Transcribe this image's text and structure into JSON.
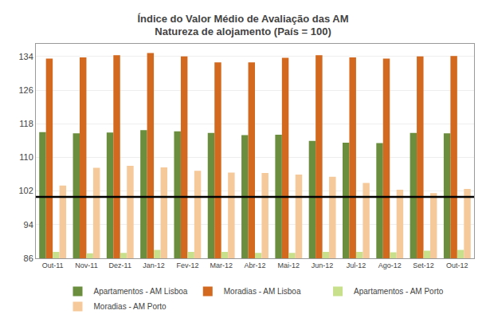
{
  "chart_data": {
    "type": "bar",
    "title": "Índice do Valor Médio de Avaliação das AM",
    "subtitle": "Natureza de alojamento (País = 100)",
    "categories": [
      "Out-11",
      "Nov-11",
      "Dez-11",
      "Jan-12",
      "Fev-12",
      "Mar-12",
      "Abr-12",
      "Mai-12",
      "Jun-12",
      "Jul-12",
      "Ago-12",
      "Set-12",
      "Out-12"
    ],
    "series": [
      {
        "name": "Apartamentos - AM Lisboa",
        "color": "#6B8E3E",
        "values": [
          116.0,
          115.7,
          115.9,
          116.5,
          116.2,
          115.8,
          115.3,
          115.4,
          113.9,
          113.5,
          113.4,
          115.8,
          115.7
        ]
      },
      {
        "name": "Moradias - AM Lisboa",
        "color": "#D2691E",
        "values": [
          133.5,
          133.8,
          134.3,
          134.8,
          134.0,
          132.6,
          132.6,
          133.7,
          134.3,
          133.8,
          133.5,
          134.0,
          134.1
        ]
      },
      {
        "name": "Apartamentos - AM Porto",
        "color": "#C8E08C",
        "values": [
          87.5,
          87.2,
          87.3,
          88.0,
          87.5,
          87.5,
          87.3,
          87.3,
          87.5,
          87.5,
          87.4,
          87.8,
          88.0
        ]
      },
      {
        "name": "Moradias - AM Porto",
        "color": "#F5C99A",
        "values": [
          103.3,
          107.5,
          108.0,
          107.6,
          106.8,
          106.4,
          106.3,
          105.9,
          105.4,
          103.9,
          102.3,
          101.5,
          102.5
        ]
      }
    ],
    "hline": 100.6,
    "ylim": [
      86,
      137
    ],
    "yticks": [
      86,
      94,
      102,
      110,
      118,
      126,
      134
    ],
    "grid": true,
    "legend": "bottom"
  }
}
